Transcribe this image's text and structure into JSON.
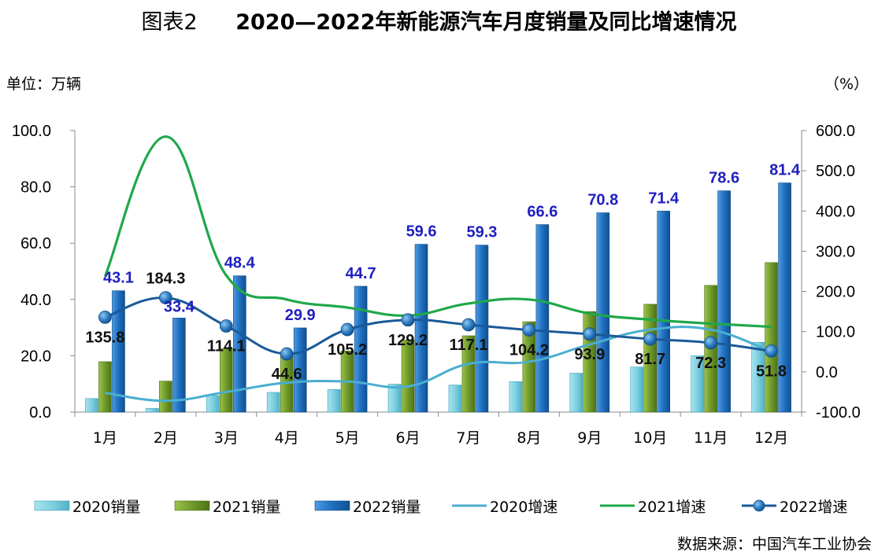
{
  "header": {
    "prefix": "图表2",
    "title": "2020—2022年新能源汽车月度销量及同比增速情况",
    "unit_left": "单位：万辆",
    "unit_right": "（%）"
  },
  "footer": {
    "source": "数据来源：中国汽车工业协会"
  },
  "colors": {
    "bar2020": "#7fd0e0",
    "bar2021": "#6f9a2a",
    "bar2022": "#1f6fc0",
    "line2020": "#4aaed0",
    "line2021": "#1fa84a",
    "line2022": "#1a5a98",
    "label2022": "#1f1fc0"
  },
  "chart_data": {
    "type": "bar",
    "categories": [
      "1月",
      "2月",
      "3月",
      "4月",
      "5月",
      "6月",
      "7月",
      "8月",
      "9月",
      "10月",
      "11月",
      "12月"
    ],
    "y_left": {
      "min": 0,
      "max": 100,
      "ticks": [
        "0.0",
        "20.0",
        "40.0",
        "60.0",
        "80.0",
        "100.0"
      ]
    },
    "y_right": {
      "min": -100,
      "max": 600,
      "ticks": [
        "-100.0",
        "0.0",
        "100.0",
        "200.0",
        "300.0",
        "400.0",
        "500.0",
        "600.0"
      ]
    },
    "bar_series": [
      {
        "name": "2020销量",
        "values": [
          4.8,
          1.3,
          5.9,
          7.0,
          8.0,
          9.9,
          9.6,
          10.8,
          13.8,
          16.0,
          20.0,
          24.8
        ]
      },
      {
        "name": "2021销量",
        "values": [
          17.9,
          11.0,
          22.6,
          20.6,
          21.7,
          25.6,
          27.1,
          32.1,
          35.7,
          38.3,
          45.0,
          53.1
        ]
      },
      {
        "name": "2022销量",
        "values": [
          43.1,
          33.4,
          48.4,
          29.9,
          44.7,
          59.6,
          59.3,
          66.6,
          70.8,
          71.4,
          78.6,
          81.4
        ]
      }
    ],
    "line_series": [
      {
        "name": "2020增速",
        "values": [
          -52,
          -72,
          -50,
          -27,
          -24,
          -36,
          20,
          25,
          68,
          105,
          105,
          50
        ]
      },
      {
        "name": "2021增速",
        "values": [
          238,
          585,
          240,
          180,
          160,
          140,
          170,
          180,
          145,
          130,
          120,
          112
        ]
      },
      {
        "name": "2022增速",
        "values": [
          135.8,
          184.3,
          114.1,
          44.6,
          105.2,
          129.2,
          117.1,
          104.2,
          93.9,
          81.7,
          72.3,
          51.8
        ]
      }
    ],
    "labels_2022_sales": [
      "43.1",
      "33.4",
      "48.4",
      "29.9",
      "44.7",
      "59.6",
      "59.3",
      "66.6",
      "70.8",
      "71.4",
      "78.6",
      "81.4"
    ],
    "labels_2022_growth": [
      "135.8",
      "184.3",
      "114.1",
      "44.6",
      "105.2",
      "129.2",
      "117.1",
      "104.2",
      "93.9",
      "81.7",
      "72.3",
      "51.8"
    ],
    "legend": [
      "2020销量",
      "2021销量",
      "2022销量",
      "2020增速",
      "2021增速",
      "2022增速"
    ],
    "legend_position": "bottom",
    "grid": false
  }
}
